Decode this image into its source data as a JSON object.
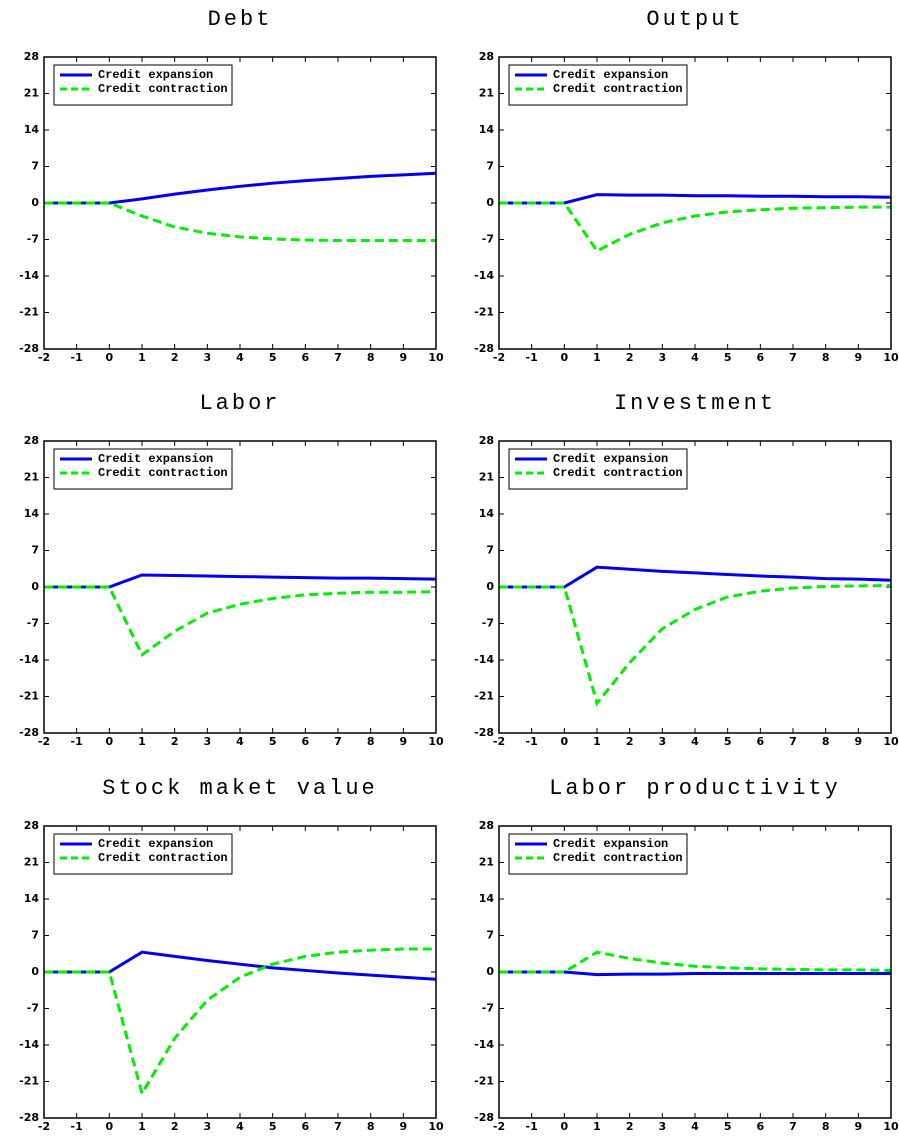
{
  "chart_data": [
    {
      "type": "line",
      "title": "Debt",
      "x": [
        -2,
        -1,
        0,
        1,
        2,
        3,
        4,
        5,
        6,
        7,
        8,
        9,
        10
      ],
      "xlim": [
        -2,
        10
      ],
      "xticks": [
        -2,
        -1,
        0,
        1,
        2,
        3,
        4,
        5,
        6,
        7,
        8,
        9,
        10
      ],
      "ylim": [
        -28,
        28
      ],
      "yticks": [
        -28,
        -21,
        -14,
        -7,
        0,
        7,
        14,
        21,
        28
      ],
      "legend": "upper left",
      "series": [
        {
          "name": "Credit expansion",
          "color": "#0000ee",
          "linestyle": "solid",
          "values": [
            0,
            0,
            0,
            0.8,
            1.7,
            2.5,
            3.2,
            3.8,
            4.3,
            4.7,
            5.1,
            5.4,
            5.7
          ]
        },
        {
          "name": "Credit contraction",
          "color": "#00ee00",
          "linestyle": "dashed",
          "values": [
            0,
            0,
            0,
            -2.5,
            -4.6,
            -5.8,
            -6.5,
            -6.9,
            -7.1,
            -7.2,
            -7.2,
            -7.2,
            -7.2
          ]
        }
      ]
    },
    {
      "type": "line",
      "title": "Output",
      "x": [
        -2,
        -1,
        0,
        1,
        2,
        3,
        4,
        5,
        6,
        7,
        8,
        9,
        10
      ],
      "xlim": [
        -2,
        10
      ],
      "xticks": [
        -2,
        -1,
        0,
        1,
        2,
        3,
        4,
        5,
        6,
        7,
        8,
        9,
        10
      ],
      "ylim": [
        -28,
        28
      ],
      "yticks": [
        -28,
        -21,
        -14,
        -7,
        0,
        7,
        14,
        21,
        28
      ],
      "legend": "upper left",
      "series": [
        {
          "name": "Credit expansion",
          "color": "#0000ee",
          "linestyle": "solid",
          "values": [
            0,
            0,
            0,
            1.6,
            1.5,
            1.5,
            1.4,
            1.4,
            1.3,
            1.3,
            1.2,
            1.2,
            1.1
          ]
        },
        {
          "name": "Credit contraction",
          "color": "#00ee00",
          "linestyle": "dashed",
          "values": [
            0,
            0,
            0,
            -9.2,
            -6.0,
            -3.8,
            -2.5,
            -1.7,
            -1.3,
            -1.0,
            -0.9,
            -0.8,
            -0.8
          ]
        }
      ]
    },
    {
      "type": "line",
      "title": "Labor",
      "x": [
        -2,
        -1,
        0,
        1,
        2,
        3,
        4,
        5,
        6,
        7,
        8,
        9,
        10
      ],
      "xlim": [
        -2,
        10
      ],
      "xticks": [
        -2,
        -1,
        0,
        1,
        2,
        3,
        4,
        5,
        6,
        7,
        8,
        9,
        10
      ],
      "ylim": [
        -28,
        28
      ],
      "yticks": [
        -28,
        -21,
        -14,
        -7,
        0,
        7,
        14,
        21,
        28
      ],
      "legend": "upper left",
      "series": [
        {
          "name": "Credit expansion",
          "color": "#0000ee",
          "linestyle": "solid",
          "values": [
            0,
            0,
            0,
            2.3,
            2.2,
            2.1,
            2.0,
            1.9,
            1.8,
            1.7,
            1.7,
            1.6,
            1.5
          ]
        },
        {
          "name": "Credit contraction",
          "color": "#00ee00",
          "linestyle": "dashed",
          "values": [
            0,
            0,
            0,
            -13.0,
            -8.5,
            -5.0,
            -3.3,
            -2.2,
            -1.5,
            -1.2,
            -1.0,
            -1.0,
            -0.9
          ]
        }
      ]
    },
    {
      "type": "line",
      "title": "Investment",
      "x": [
        -2,
        -1,
        0,
        1,
        2,
        3,
        4,
        5,
        6,
        7,
        8,
        9,
        10
      ],
      "xlim": [
        -2,
        10
      ],
      "xticks": [
        -2,
        -1,
        0,
        1,
        2,
        3,
        4,
        5,
        6,
        7,
        8,
        9,
        10
      ],
      "ylim": [
        -28,
        28
      ],
      "yticks": [
        -28,
        -21,
        -14,
        -7,
        0,
        7,
        14,
        21,
        28
      ],
      "legend": "upper left",
      "series": [
        {
          "name": "Credit expansion",
          "color": "#0000ee",
          "linestyle": "solid",
          "values": [
            0,
            0,
            0,
            3.8,
            3.4,
            3.0,
            2.7,
            2.4,
            2.1,
            1.9,
            1.6,
            1.5,
            1.3
          ]
        },
        {
          "name": "Credit contraction",
          "color": "#00ee00",
          "linestyle": "dashed",
          "values": [
            0,
            0,
            0,
            -22.3,
            -14.5,
            -8.0,
            -4.3,
            -1.9,
            -0.8,
            -0.2,
            0.1,
            0.2,
            0.3
          ]
        }
      ]
    },
    {
      "type": "line",
      "title": "Stock maket value",
      "x": [
        -2,
        -1,
        0,
        1,
        2,
        3,
        4,
        5,
        6,
        7,
        8,
        9,
        10
      ],
      "xlim": [
        -2,
        10
      ],
      "xticks": [
        -2,
        -1,
        0,
        1,
        2,
        3,
        4,
        5,
        6,
        7,
        8,
        9,
        10
      ],
      "ylim": [
        -28,
        28
      ],
      "yticks": [
        -28,
        -21,
        -14,
        -7,
        0,
        7,
        14,
        21,
        28
      ],
      "legend": "upper left",
      "series": [
        {
          "name": "Credit expansion",
          "color": "#0000ee",
          "linestyle": "solid",
          "values": [
            0,
            0,
            0,
            3.8,
            3.0,
            2.2,
            1.5,
            0.8,
            0.3,
            -0.2,
            -0.6,
            -1.0,
            -1.4
          ]
        },
        {
          "name": "Credit contraction",
          "color": "#00ee00",
          "linestyle": "dashed",
          "values": [
            0,
            0,
            0,
            -23.3,
            -12.7,
            -5.4,
            -1.0,
            1.5,
            3.0,
            3.8,
            4.2,
            4.4,
            4.4
          ]
        }
      ]
    },
    {
      "type": "line",
      "title": "Labor productivity",
      "x": [
        -2,
        -1,
        0,
        1,
        2,
        3,
        4,
        5,
        6,
        7,
        8,
        9,
        10
      ],
      "xlim": [
        -2,
        10
      ],
      "xticks": [
        -2,
        -1,
        0,
        1,
        2,
        3,
        4,
        5,
        6,
        7,
        8,
        9,
        10
      ],
      "ylim": [
        -28,
        28
      ],
      "yticks": [
        -28,
        -21,
        -14,
        -7,
        0,
        7,
        14,
        21,
        28
      ],
      "legend": "upper left",
      "series": [
        {
          "name": "Credit expansion",
          "color": "#0000ee",
          "linestyle": "solid",
          "values": [
            0,
            0,
            0,
            -0.5,
            -0.4,
            -0.4,
            -0.3,
            -0.3,
            -0.3,
            -0.3,
            -0.3,
            -0.3,
            -0.3
          ]
        },
        {
          "name": "Credit contraction",
          "color": "#00ee00",
          "linestyle": "dashed",
          "values": [
            0,
            0,
            0,
            3.8,
            2.6,
            1.7,
            1.1,
            0.8,
            0.6,
            0.5,
            0.4,
            0.4,
            0.3
          ]
        }
      ]
    }
  ]
}
